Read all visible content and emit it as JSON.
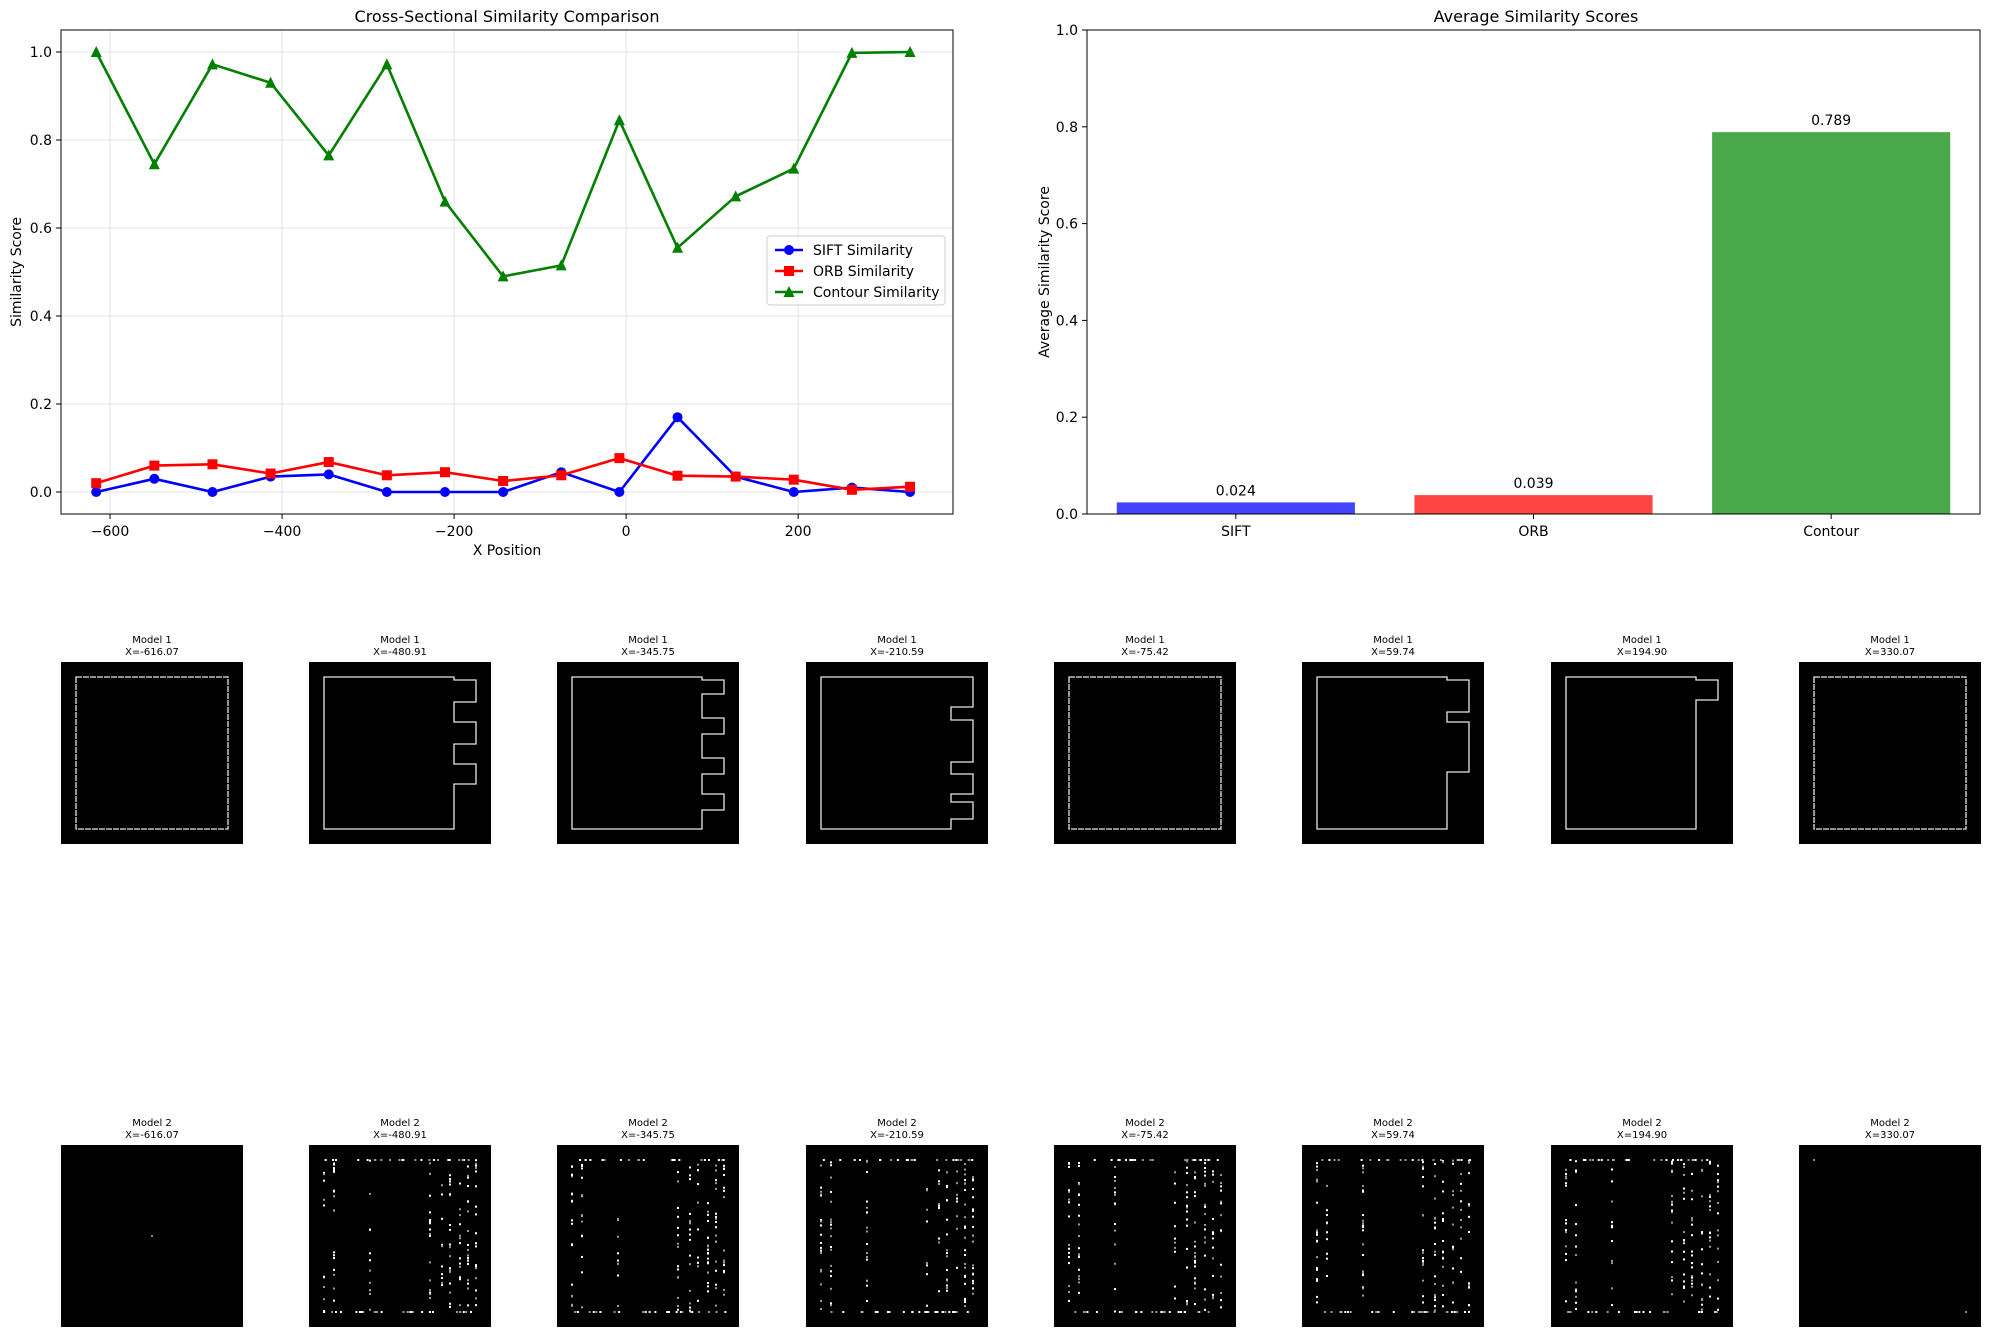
{
  "chart_data": [
    {
      "type": "line",
      "title": "Cross-Sectional Similarity Comparison",
      "xlabel": "X Position",
      "ylabel": "Similarity Score",
      "xlim": [
        -657,
        380
      ],
      "ylim": [
        -0.05,
        1.05
      ],
      "xticks": [
        -600,
        -400,
        -200,
        0,
        200
      ],
      "xtick_labels": [
        "−600",
        "−400",
        "−200",
        "0",
        "200"
      ],
      "yticks": [
        0.0,
        0.2,
        0.4,
        0.6,
        0.8,
        1.0
      ],
      "ytick_labels": [
        "0.0",
        "0.2",
        "0.4",
        "0.6",
        "0.8",
        "1.0"
      ],
      "grid": true,
      "legend_position": "center-right",
      "x": [
        -616.07,
        -548.49,
        -480.91,
        -413.33,
        -345.75,
        -278.17,
        -210.59,
        -143.0,
        -75.42,
        -7.84,
        59.74,
        127.32,
        194.9,
        262.49,
        330.07
      ],
      "series": [
        {
          "name": "SIFT Similarity",
          "color": "#0000ff",
          "marker": "circle",
          "values": [
            0.0,
            0.03,
            0.0,
            0.035,
            0.04,
            0.0,
            0.0,
            0.0,
            0.045,
            0.0,
            0.17,
            0.035,
            0.0,
            0.01,
            0.0
          ]
        },
        {
          "name": "ORB Similarity",
          "color": "#ff0000",
          "marker": "square",
          "values": [
            0.02,
            0.06,
            0.063,
            0.042,
            0.068,
            0.038,
            0.045,
            0.025,
            0.038,
            0.077,
            0.037,
            0.035,
            0.028,
            0.005,
            0.012
          ]
        },
        {
          "name": "Contour Similarity",
          "color": "#008000",
          "marker": "triangle",
          "values": [
            1.0,
            0.745,
            0.972,
            0.93,
            0.765,
            0.972,
            0.66,
            0.49,
            0.515,
            0.845,
            0.555,
            0.672,
            0.735,
            0.998,
            1.0
          ]
        }
      ]
    },
    {
      "type": "bar",
      "title": "Average Similarity Scores",
      "xlabel": "",
      "ylabel": "Average Similarity Score",
      "ylim": [
        0,
        1.0
      ],
      "yticks": [
        0.0,
        0.2,
        0.4,
        0.6,
        0.8,
        1.0
      ],
      "ytick_labels": [
        "0.0",
        "0.2",
        "0.4",
        "0.6",
        "0.8",
        "1.0"
      ],
      "categories": [
        "SIFT",
        "ORB",
        "Contour"
      ],
      "values": [
        0.024,
        0.039,
        0.789
      ],
      "data_labels": [
        "0.024",
        "0.039",
        "0.789"
      ],
      "colors": [
        "#4444ff",
        "#ff4444",
        "#49a849"
      ]
    }
  ],
  "sections": {
    "model1": [
      {
        "title": "Model 1",
        "xlabel": "X=-616.07"
      },
      {
        "title": "Model 1",
        "xlabel": "X=-480.91"
      },
      {
        "title": "Model 1",
        "xlabel": "X=-345.75"
      },
      {
        "title": "Model 1",
        "xlabel": "X=-210.59"
      },
      {
        "title": "Model 1",
        "xlabel": "X=-75.42"
      },
      {
        "title": "Model 1",
        "xlabel": "X=59.74"
      },
      {
        "title": "Model 1",
        "xlabel": "X=194.90"
      },
      {
        "title": "Model 1",
        "xlabel": "X=330.07"
      }
    ],
    "model2": [
      {
        "title": "Model 2",
        "xlabel": "X=-616.07"
      },
      {
        "title": "Model 2",
        "xlabel": "X=-480.91"
      },
      {
        "title": "Model 2",
        "xlabel": "X=-345.75"
      },
      {
        "title": "Model 2",
        "xlabel": "X=-210.59"
      },
      {
        "title": "Model 2",
        "xlabel": "X=-75.42"
      },
      {
        "title": "Model 2",
        "xlabel": "X=59.74"
      },
      {
        "title": "Model 2",
        "xlabel": "X=194.90"
      },
      {
        "title": "Model 2",
        "xlabel": "X=330.07"
      }
    ]
  }
}
